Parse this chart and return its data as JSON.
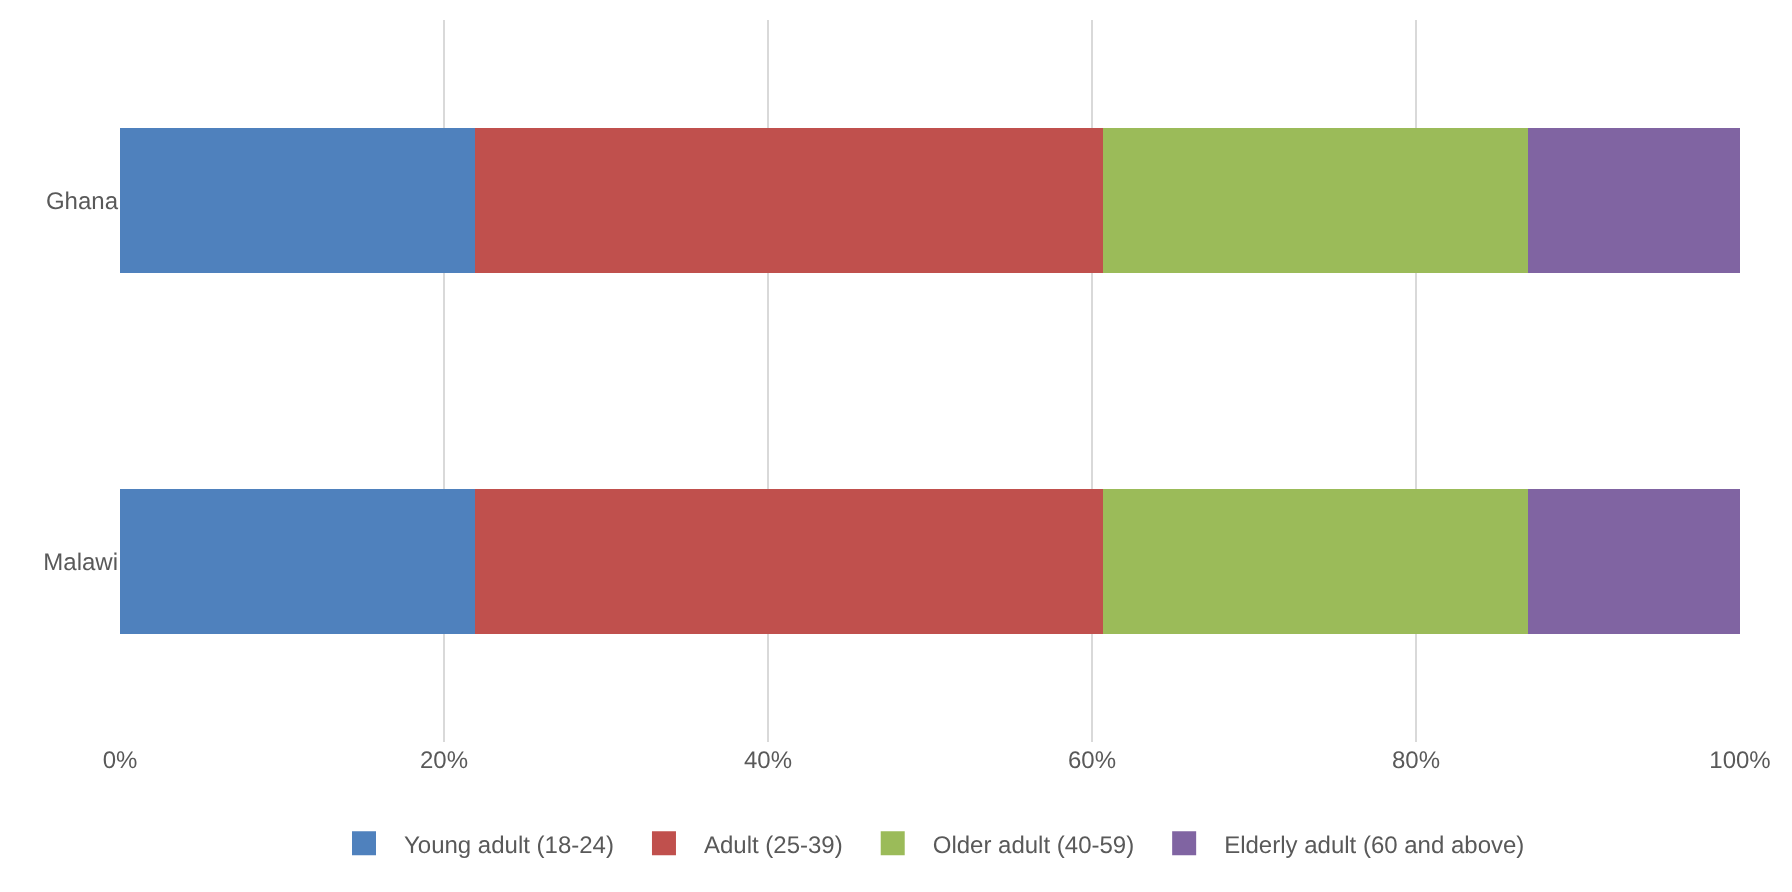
{
  "chart_data": {
    "type": "bar",
    "orientation": "horizontal",
    "stacked": true,
    "categories": [
      "Ghana",
      "Malawi"
    ],
    "series": [
      {
        "name": "Young adult (18-24)",
        "color": "#4f81bd",
        "values": [
          21.9,
          21.9
        ]
      },
      {
        "name": "Adult (25-39)",
        "color": "#c0504d",
        "values": [
          38.8,
          38.8
        ]
      },
      {
        "name": "Older adult (40-59)",
        "color": "#9bbb59",
        "values": [
          26.2,
          26.2
        ]
      },
      {
        "name": "Elderly adult (60 and above)",
        "color": "#8064a2",
        "values": [
          13.1,
          13.1
        ]
      }
    ],
    "xlim": [
      0,
      100
    ],
    "xticks": [
      {
        "value": 0,
        "label": "0%"
      },
      {
        "value": 20,
        "label": "20%"
      },
      {
        "value": 40,
        "label": "40%"
      },
      {
        "value": 60,
        "label": "60%"
      },
      {
        "value": 80,
        "label": "80%"
      },
      {
        "value": 100,
        "label": "100%"
      }
    ],
    "grid": "x",
    "legend": "bottom"
  }
}
